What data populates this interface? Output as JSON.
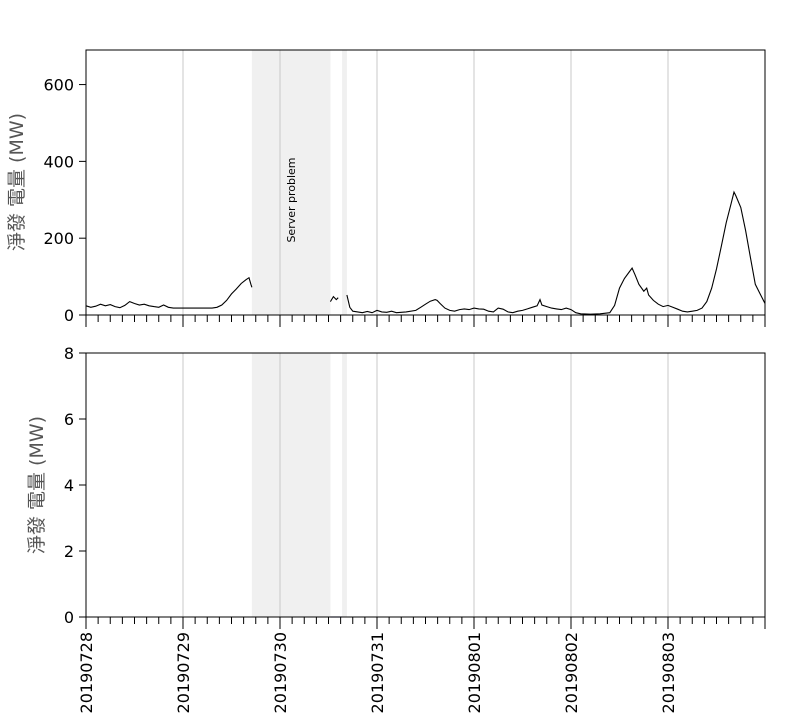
{
  "chart_data": [
    {
      "type": "line",
      "title": "",
      "xlabel": "",
      "ylabel": "淨發 電量 (MW)",
      "ylim": [
        0,
        690
      ],
      "yticks": [
        0,
        200,
        400,
        600
      ],
      "xlim": [
        0,
        7
      ],
      "x_ticks": [
        0,
        1,
        2,
        3,
        4,
        5,
        6
      ],
      "x_labels": [
        "20190728",
        "20190729",
        "20190730",
        "20190731",
        "20190801",
        "20190802",
        "20190803"
      ],
      "grid": "vertical",
      "annotation": "Server problem",
      "shaded_regions": [
        [
          1.71,
          2.52
        ],
        [
          2.64,
          2.69
        ]
      ],
      "series": [
        {
          "color": "#000000",
          "points": [
            [
              0.0,
              24
            ],
            [
              0.05,
              20
            ],
            [
              0.1,
              23
            ],
            [
              0.15,
              28
            ],
            [
              0.2,
              24
            ],
            [
              0.25,
              27
            ],
            [
              0.3,
              22
            ],
            [
              0.35,
              19
            ],
            [
              0.4,
              25
            ],
            [
              0.45,
              35
            ],
            [
              0.5,
              30
            ],
            [
              0.55,
              26
            ],
            [
              0.6,
              28
            ],
            [
              0.65,
              24
            ],
            [
              0.7,
              22
            ],
            [
              0.75,
              20
            ],
            [
              0.8,
              26
            ],
            [
              0.85,
              20
            ],
            [
              0.9,
              18
            ],
            [
              1.0,
              18
            ],
            [
              1.1,
              18
            ],
            [
              1.2,
              18
            ],
            [
              1.3,
              18
            ],
            [
              1.35,
              20
            ],
            [
              1.4,
              26
            ],
            [
              1.45,
              38
            ],
            [
              1.5,
              55
            ],
            [
              1.55,
              68
            ],
            [
              1.6,
              82
            ],
            [
              1.65,
              92
            ],
            [
              1.68,
              97
            ],
            [
              1.7,
              80
            ],
            [
              1.71,
              72
            ],
            [
              2.52,
              35
            ],
            [
              2.55,
              48
            ],
            [
              2.58,
              40
            ],
            [
              2.6,
              45
            ],
            [
              2.69,
              52
            ],
            [
              2.72,
              20
            ],
            [
              2.75,
              10
            ],
            [
              2.8,
              8
            ],
            [
              2.85,
              6
            ],
            [
              2.9,
              9
            ],
            [
              2.95,
              6
            ],
            [
              3.0,
              12
            ],
            [
              3.05,
              8
            ],
            [
              3.1,
              7
            ],
            [
              3.15,
              10
            ],
            [
              3.2,
              6
            ],
            [
              3.3,
              8
            ],
            [
              3.4,
              12
            ],
            [
              3.45,
              20
            ],
            [
              3.5,
              28
            ],
            [
              3.55,
              36
            ],
            [
              3.6,
              40
            ],
            [
              3.62,
              38
            ],
            [
              3.65,
              30
            ],
            [
              3.7,
              18
            ],
            [
              3.75,
              12
            ],
            [
              3.8,
              10
            ],
            [
              3.85,
              14
            ],
            [
              3.9,
              16
            ],
            [
              3.95,
              14
            ],
            [
              4.0,
              18
            ],
            [
              4.05,
              16
            ],
            [
              4.1,
              15
            ],
            [
              4.15,
              10
            ],
            [
              4.2,
              8
            ],
            [
              4.25,
              18
            ],
            [
              4.3,
              15
            ],
            [
              4.35,
              8
            ],
            [
              4.4,
              6
            ],
            [
              4.45,
              10
            ],
            [
              4.5,
              12
            ],
            [
              4.55,
              16
            ],
            [
              4.6,
              20
            ],
            [
              4.65,
              24
            ],
            [
              4.68,
              40
            ],
            [
              4.7,
              26
            ],
            [
              4.75,
              22
            ],
            [
              4.8,
              18
            ],
            [
              4.85,
              16
            ],
            [
              4.9,
              14
            ],
            [
              4.95,
              18
            ],
            [
              5.0,
              14
            ],
            [
              5.05,
              6
            ],
            [
              5.1,
              3
            ],
            [
              5.2,
              2
            ],
            [
              5.3,
              3
            ],
            [
              5.4,
              6
            ],
            [
              5.45,
              25
            ],
            [
              5.5,
              70
            ],
            [
              5.55,
              95
            ],
            [
              5.6,
              112
            ],
            [
              5.63,
              122
            ],
            [
              5.66,
              105
            ],
            [
              5.7,
              80
            ],
            [
              5.75,
              62
            ],
            [
              5.78,
              70
            ],
            [
              5.8,
              52
            ],
            [
              5.85,
              38
            ],
            [
              5.9,
              28
            ],
            [
              5.95,
              22
            ],
            [
              6.0,
              25
            ],
            [
              6.05,
              20
            ],
            [
              6.1,
              15
            ],
            [
              6.15,
              10
            ],
            [
              6.2,
              8
            ],
            [
              6.25,
              10
            ],
            [
              6.3,
              12
            ],
            [
              6.35,
              18
            ],
            [
              6.4,
              35
            ],
            [
              6.45,
              70
            ],
            [
              6.5,
              120
            ],
            [
              6.55,
              180
            ],
            [
              6.6,
              240
            ],
            [
              6.65,
              290
            ],
            [
              6.68,
              320
            ],
            [
              6.7,
              310
            ],
            [
              6.75,
              280
            ],
            [
              6.8,
              220
            ],
            [
              6.85,
              150
            ],
            [
              6.9,
              80
            ],
            [
              6.95,
              55
            ],
            [
              7.0,
              30
            ]
          ]
        }
      ]
    },
    {
      "type": "line",
      "title": "",
      "xlabel": "",
      "ylabel": "淨發 電量 (MW)",
      "ylim": [
        0,
        8
      ],
      "yticks": [
        0,
        2,
        4,
        6,
        8
      ],
      "xlim": [
        0,
        7
      ],
      "x_ticks": [
        0,
        1,
        2,
        3,
        4,
        5,
        6
      ],
      "x_labels": [
        "20190728",
        "20190729",
        "20190730",
        "20190731",
        "20190801",
        "20190802",
        "20190803"
      ],
      "grid": "vertical",
      "shaded_regions": [
        [
          1.71,
          2.52
        ],
        [
          2.64,
          2.69
        ]
      ],
      "series": [
        {
          "color": "#1a1a80",
          "points": [
            [
              0,
              0
            ],
            [
              1.71,
              0
            ],
            [
              2.52,
              0
            ],
            [
              2.64,
              0
            ],
            [
              2.69,
              0
            ],
            [
              7,
              0
            ]
          ]
        }
      ]
    }
  ]
}
